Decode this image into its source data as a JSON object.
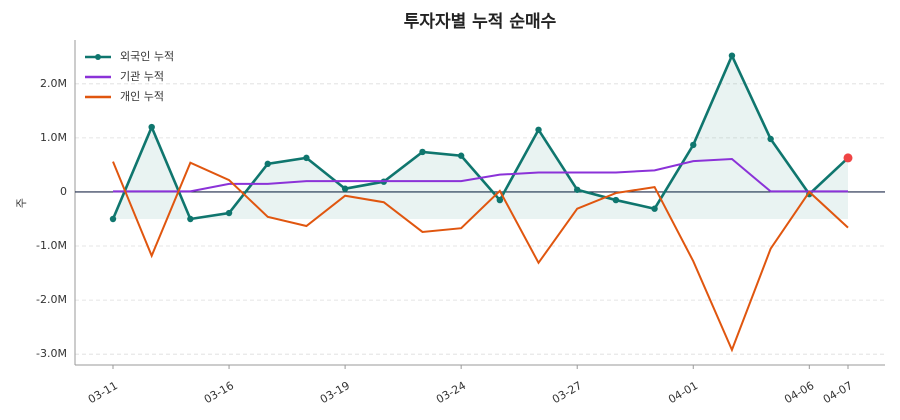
{
  "chart_data": {
    "type": "line",
    "title": "투자자별 누적 순매수",
    "y_label": "주",
    "categories": [
      "03-11",
      null,
      null,
      "03-16",
      null,
      null,
      "03-19",
      null,
      null,
      "03-24",
      null,
      null,
      "03-27",
      null,
      null,
      "04-01",
      null,
      null,
      "04-06",
      "04-07"
    ],
    "series": [
      {
        "name": "외국인 누적",
        "color": "#0f766e",
        "markers": true,
        "fill": true,
        "values": [
          -500000,
          1200000,
          -500000,
          -390000,
          520000,
          630000,
          60000,
          190000,
          740000,
          670000,
          -150000,
          1150000,
          40000,
          -150000,
          -310000,
          870000,
          2520000,
          980000,
          -40000,
          630000
        ]
      },
      {
        "name": "기관 누적",
        "color": "#8b32d8",
        "markers": false,
        "fill": false,
        "values": [
          10000,
          10000,
          10000,
          150000,
          150000,
          200000,
          200000,
          200000,
          200000,
          200000,
          320000,
          360000,
          360000,
          360000,
          400000,
          570000,
          610000,
          10000,
          10000,
          10000
        ]
      },
      {
        "name": "개인 누적",
        "color": "#e0560f",
        "markers": false,
        "fill": false,
        "values": [
          560000,
          -1180000,
          540000,
          220000,
          -460000,
          -630000,
          -70000,
          -190000,
          -740000,
          -670000,
          20000,
          -1310000,
          -310000,
          -20000,
          90000,
          -1280000,
          -2920000,
          -1050000,
          0,
          -660000
        ]
      }
    ],
    "highlight_last_color": "#ef4444",
    "zero_line_color": "#1e2a4a",
    "ylim": [
      -3200000,
      2810000
    ],
    "yticks": [
      {
        "value": -3000000,
        "label": "-3.0M"
      },
      {
        "value": -2000000,
        "label": "-2.0M"
      },
      {
        "value": -1000000,
        "label": "-1.0M"
      },
      0,
      {
        "value": 1000000,
        "label": "1.0M"
      },
      {
        "value": 2000000,
        "label": "2.0M"
      }
    ],
    "grid": true,
    "legend": "upper left"
  }
}
